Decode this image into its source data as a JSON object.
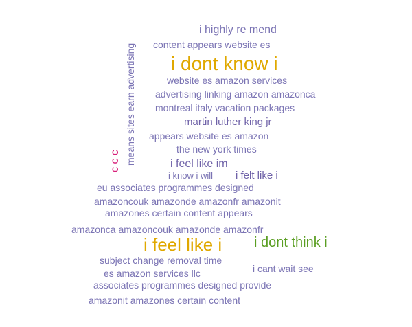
{
  "word_cloud": {
    "colors": {
      "purple": "#7b74b4",
      "purple_dark": "#6f62a8",
      "gold": "#e0a800",
      "green": "#5a9e22",
      "pink": "#d8207a",
      "background": "#ffffff"
    },
    "phrases": [
      "i highly re mend",
      "content appears website es",
      "i dont know i",
      "website es amazon services",
      "advertising linking amazon amazonca",
      "montreal italy vacation packages",
      "martin luther king jr",
      "appears website es amazon",
      "the new york times",
      "i feel like im",
      "i know i will",
      "i felt like i",
      "eu associates programmes designed",
      "amazoncouk amazonde amazonfr amazonit",
      "amazones certain content appears",
      "amazonca amazoncouk amazonde amazonfr",
      "i feel like i",
      "i dont think i",
      "subject change removal time",
      "i cant wait see",
      "es amazon services llc",
      "associates programmes designed provide",
      "amazonit amazones certain content",
      "means sites earn advertising",
      "c c c"
    ]
  }
}
